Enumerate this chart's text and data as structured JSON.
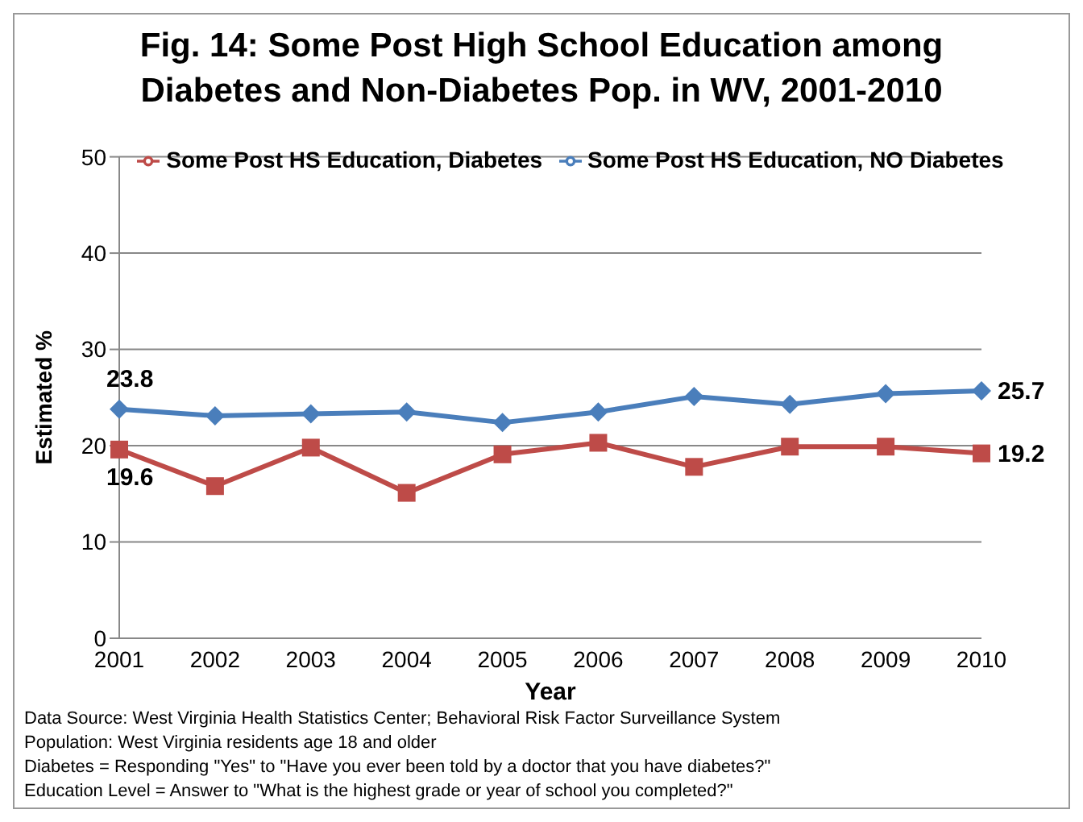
{
  "chart_data": {
    "type": "line",
    "title": "Fig. 14:  Some Post High School Education among Diabetes and Non-Diabetes Pop. in WV, 2001-2010",
    "xlabel": "Year",
    "ylabel": "Estimated %",
    "categories": [
      "2001",
      "2002",
      "2003",
      "2004",
      "2005",
      "2006",
      "2007",
      "2008",
      "2009",
      "2010"
    ],
    "series": [
      {
        "name": "Some Post HS Education, NO Diabetes",
        "color": "#4a7ebb",
        "marker": "diamond",
        "values": [
          23.8,
          23.1,
          23.3,
          23.5,
          22.4,
          23.5,
          25.1,
          24.3,
          25.4,
          25.7
        ],
        "value_labels": [
          "23.8",
          null,
          null,
          null,
          null,
          null,
          null,
          null,
          null,
          "25.7"
        ]
      },
      {
        "name": "Some Post HS Education, Diabetes",
        "color": "#be4b48",
        "marker": "square",
        "values": [
          19.6,
          15.8,
          19.8,
          15.1,
          19.1,
          20.3,
          17.8,
          19.9,
          19.9,
          19.2
        ],
        "value_labels": [
          "19.6",
          null,
          null,
          null,
          null,
          null,
          null,
          null,
          null,
          "19.2"
        ]
      }
    ],
    "ylim": [
      0,
      50
    ],
    "yticks": [
      0,
      10,
      20,
      30,
      40,
      50
    ],
    "grid": "y",
    "legend": "top",
    "annotations": [
      "Data Source: West Virginia Health Statistics Center; Behavioral Risk Factor Surveillance System",
      "Population: West Virginia residents age 18 and older",
      "Diabetes = Responding \"Yes\" to \"Have you ever been told by a doctor that you have diabetes?\"",
      "Education Level = Answer to \"What is the highest grade or year of school you completed?\""
    ]
  }
}
